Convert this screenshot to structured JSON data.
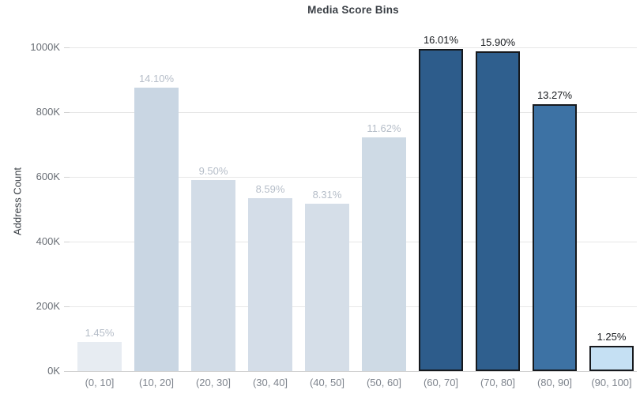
{
  "chart": {
    "title": "Media Score Bins",
    "y_axis_title": "Address Count"
  },
  "chart_data": {
    "type": "bar",
    "title": "Media Score Bins",
    "xlabel": "",
    "ylabel": "Address Count",
    "categories": [
      "(0, 10]",
      "(10, 20]",
      "(20, 30]",
      "(30, 40]",
      "(40, 50]",
      "(50, 60]",
      "(60, 70]",
      "(70, 80]",
      "(80, 90]",
      "(90, 100]"
    ],
    "values": [
      90000,
      876000,
      590000,
      534000,
      516000,
      722000,
      995000,
      988000,
      825000,
      78000
    ],
    "percent_labels": [
      "1.45%",
      "14.10%",
      "9.50%",
      "8.59%",
      "8.31%",
      "11.62%",
      "16.01%",
      "15.90%",
      "13.27%",
      "1.25%"
    ],
    "highlighted": [
      false,
      false,
      false,
      false,
      false,
      false,
      true,
      true,
      true,
      true
    ],
    "bar_colors": [
      "#e7ecf2",
      "#c9d6e3",
      "#d2dce7",
      "#d4dde8",
      "#d5dee8",
      "#cedae5",
      "#2d5c8b",
      "#2f5f8e",
      "#3d72a4",
      "#c5e0f3"
    ],
    "y_ticks": [
      "0K",
      "200K",
      "400K",
      "600K",
      "800K",
      "1000K"
    ],
    "y_tick_values": [
      0,
      200000,
      400000,
      600000,
      800000,
      1000000
    ],
    "ylim": [
      0,
      1073000
    ],
    "grid": "horizontal",
    "legend": "none",
    "colors": {
      "highlight_border": "#16191d",
      "highlight_label": "#16191d",
      "muted_label": "#b5bdc8",
      "gridline": "#e7e7e7",
      "baseline": "#d2d2d2",
      "tick_mark": "#d2d2d2",
      "y_tick_label": "#686d74",
      "x_tick_label": "#7e848d",
      "title": "#3a3f45"
    }
  }
}
